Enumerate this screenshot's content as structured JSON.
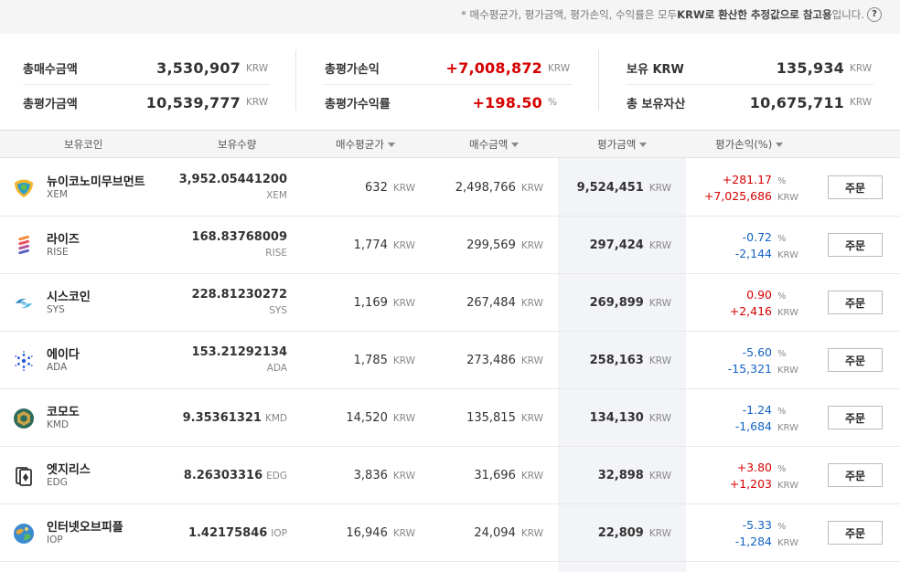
{
  "notice": {
    "prefix": "* 매수평균가, 평가금액, 평가손익, 수익률은 모두 ",
    "bold": "KRW로 환산한 추정값으로 참고용",
    "suffix": "입니다.",
    "help": "?"
  },
  "summary": {
    "total_buy_label": "총매수금액",
    "total_buy_value": "3,530,907",
    "total_buy_unit": "KRW",
    "total_eval_label": "총평가금액",
    "total_eval_value": "10,539,777",
    "total_eval_unit": "KRW",
    "total_pnl_label": "총평가손익",
    "total_pnl_value": "+7,008,872",
    "total_pnl_unit": "KRW",
    "total_rate_label": "총평가수익률",
    "total_rate_value": "+198.50",
    "total_rate_unit": "%",
    "krw_label": "보유 KRW",
    "krw_value": "135,934",
    "krw_unit": "KRW",
    "assets_label": "총 보유자산",
    "assets_value": "10,675,711",
    "assets_unit": "KRW"
  },
  "headers": {
    "coin": "보유코인",
    "qty": "보유수량",
    "avg": "매수평균가",
    "buy": "매수금액",
    "eval": "평가금액",
    "pnl": "평가손익(%)"
  },
  "unit": "KRW",
  "pct": "%",
  "order_label": "주문",
  "rows": [
    {
      "name": "뉴이코노미무브먼트",
      "symbol": "XEM",
      "qty": "3,952.05441200",
      "qty_unit": "XEM",
      "avg": "632",
      "buy": "2,498,766",
      "eval": "9,524,451",
      "rate": "+281.17",
      "pnl": "+7,025,686",
      "trend": "up",
      "icon": "xem-icon"
    },
    {
      "name": "라이즈",
      "symbol": "RISE",
      "qty": "168.83768009",
      "qty_unit": "RISE",
      "avg": "1,774",
      "buy": "299,569",
      "eval": "297,424",
      "rate": "-0.72",
      "pnl": "-2,144",
      "trend": "down",
      "icon": "rise-icon"
    },
    {
      "name": "시스코인",
      "symbol": "SYS",
      "qty": "228.81230272",
      "qty_unit": "SYS",
      "avg": "1,169",
      "buy": "267,484",
      "eval": "269,899",
      "rate": "0.90",
      "pnl": "+2,416",
      "trend": "up",
      "icon": "sys-icon"
    },
    {
      "name": "에이다",
      "symbol": "ADA",
      "qty": "153.21292134",
      "qty_unit": "ADA",
      "avg": "1,785",
      "buy": "273,486",
      "eval": "258,163",
      "rate": "-5.60",
      "pnl": "-15,321",
      "trend": "down",
      "icon": "ada-icon"
    },
    {
      "name": "코모도",
      "symbol": "KMD",
      "qty": "9.35361321",
      "qty_unit": "KMD",
      "avg": "14,520",
      "buy": "135,815",
      "eval": "134,130",
      "rate": "-1.24",
      "pnl": "-1,684",
      "trend": "down",
      "icon": "kmd-icon"
    },
    {
      "name": "엣지리스",
      "symbol": "EDG",
      "qty": "8.26303316",
      "qty_unit": "EDG",
      "avg": "3,836",
      "buy": "31,696",
      "eval": "32,898",
      "rate": "+3.80",
      "pnl": "+1,203",
      "trend": "up",
      "icon": "edg-icon"
    },
    {
      "name": "인터넷오브피플",
      "symbol": "IOP",
      "qty": "1.42175846",
      "qty_unit": "IOP",
      "avg": "16,946",
      "buy": "24,094",
      "eval": "22,809",
      "rate": "-5.33",
      "pnl": "-1,284",
      "trend": "down",
      "icon": "iop-icon"
    }
  ],
  "colors": {
    "up": "#d60000",
    "down": "#1261c4"
  }
}
